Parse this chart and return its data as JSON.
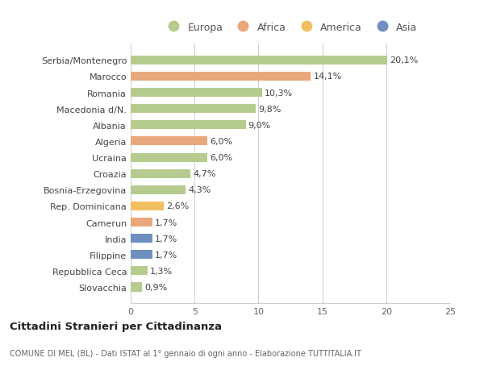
{
  "categories": [
    "Slovacchia",
    "Repubblica Ceca",
    "Filippine",
    "India",
    "Camerun",
    "Rep. Dominicana",
    "Bosnia-Erzegovina",
    "Croazia",
    "Ucraina",
    "Algeria",
    "Albania",
    "Macedonia d/N.",
    "Romania",
    "Marocco",
    "Serbia/Montenegro"
  ],
  "values": [
    0.9,
    1.3,
    1.7,
    1.7,
    1.7,
    2.6,
    4.3,
    4.7,
    6.0,
    6.0,
    9.0,
    9.8,
    10.3,
    14.1,
    20.1
  ],
  "colors": [
    "#b5cc8e",
    "#b5cc8e",
    "#6e8fbf",
    "#6e8fbf",
    "#e8a87c",
    "#f0c060",
    "#b5cc8e",
    "#b5cc8e",
    "#b5cc8e",
    "#e8a87c",
    "#b5cc8e",
    "#b5cc8e",
    "#b5cc8e",
    "#e8a87c",
    "#b5cc8e"
  ],
  "labels": [
    "0,9%",
    "1,3%",
    "1,7%",
    "1,7%",
    "1,7%",
    "2,6%",
    "4,3%",
    "4,7%",
    "6,0%",
    "6,0%",
    "9,0%",
    "9,8%",
    "10,3%",
    "14,1%",
    "20,1%"
  ],
  "xlim": [
    0,
    25
  ],
  "xticks": [
    0,
    5,
    10,
    15,
    20,
    25
  ],
  "legend_labels": [
    "Europa",
    "Africa",
    "America",
    "Asia"
  ],
  "legend_colors": [
    "#b5cc8e",
    "#e8a87c",
    "#f0c060",
    "#6e8fbf"
  ],
  "title": "Cittadini Stranieri per Cittadinanza",
  "subtitle": "COMUNE DI MEL (BL) - Dati ISTAT al 1° gennaio di ogni anno - Elaborazione TUTTITALIA.IT",
  "bar_height": 0.55,
  "background_color": "#ffffff",
  "grid_color": "#cccccc"
}
